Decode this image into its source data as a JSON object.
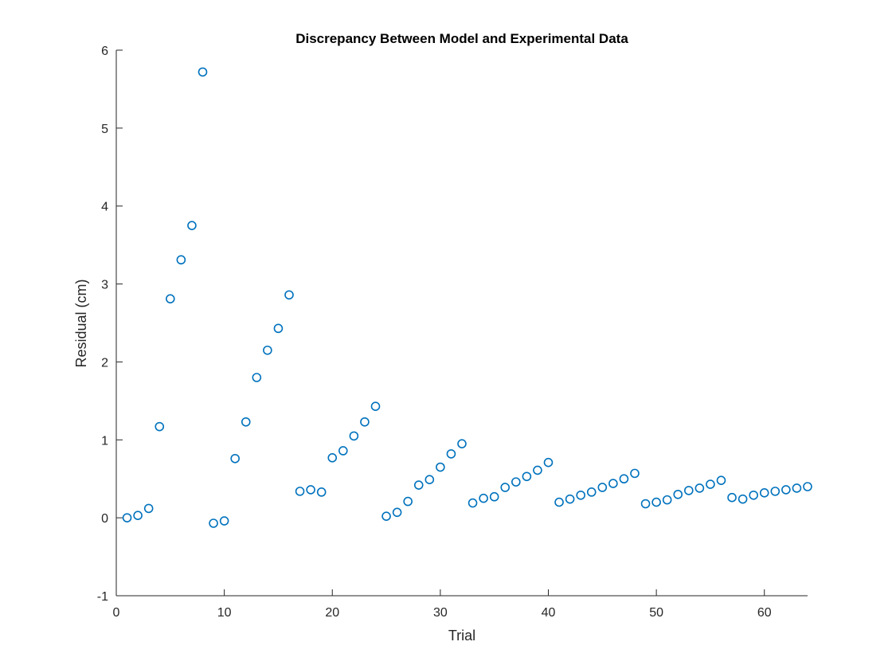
{
  "chart_data": {
    "type": "scatter",
    "title": "Discrepancy Between Model and Experimental Data",
    "xlabel": "Trial",
    "ylabel": "Residual (cm)",
    "xlim": [
      0,
      64
    ],
    "ylim": [
      -1,
      6
    ],
    "xticks": [
      0,
      10,
      20,
      30,
      40,
      50,
      60
    ],
    "yticks": [
      -1,
      0,
      1,
      2,
      3,
      4,
      5,
      6
    ],
    "grid": false,
    "marker": "circle-open",
    "marker_color": "#0072BD",
    "series": [
      {
        "x": [
          1,
          2,
          3,
          4,
          5,
          6,
          7,
          8,
          9,
          10,
          11,
          12,
          13,
          14,
          15,
          16,
          17,
          18,
          19,
          20,
          21,
          22,
          23,
          24,
          25,
          26,
          27,
          28,
          29,
          30,
          31,
          32,
          33,
          34,
          35,
          36,
          37,
          38,
          39,
          40,
          41,
          42,
          43,
          44,
          45,
          46,
          47,
          48,
          49,
          50,
          51,
          52,
          53,
          54,
          55,
          56,
          57,
          58,
          59,
          60,
          61,
          62,
          63,
          64
        ],
        "y": [
          0.0,
          0.03,
          0.12,
          1.17,
          2.81,
          3.31,
          3.75,
          5.72,
          -0.07,
          -0.04,
          0.76,
          1.23,
          1.8,
          2.15,
          2.43,
          2.86,
          0.34,
          0.36,
          0.33,
          0.77,
          0.86,
          1.05,
          1.23,
          1.43,
          0.02,
          0.07,
          0.21,
          0.42,
          0.49,
          0.65,
          0.82,
          0.95,
          0.19,
          0.25,
          0.27,
          0.39,
          0.46,
          0.53,
          0.61,
          0.71,
          0.2,
          0.24,
          0.29,
          0.33,
          0.39,
          0.44,
          0.5,
          0.57,
          0.18,
          0.2,
          0.23,
          0.3,
          0.35,
          0.38,
          0.43,
          0.48,
          0.26,
          0.24,
          0.29,
          0.32,
          0.34,
          0.36,
          0.38,
          0.4
        ]
      }
    ]
  }
}
